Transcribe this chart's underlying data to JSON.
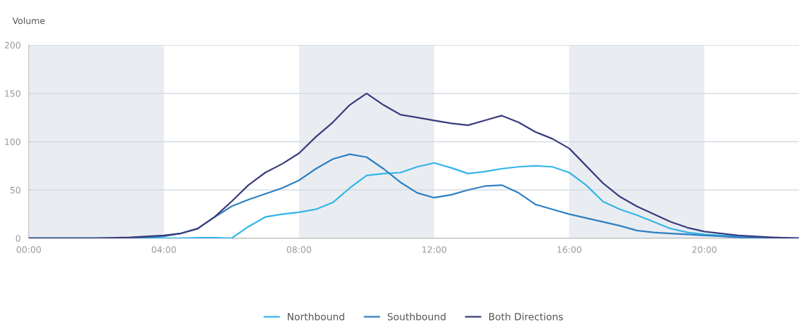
{
  "chart_data": {
    "type": "line",
    "ylabel": "Volume",
    "x": [
      0,
      2,
      3,
      4,
      4.5,
      5,
      5.5,
      6,
      6.5,
      7,
      7.5,
      8,
      8.5,
      9,
      9.5,
      10,
      10.5,
      11,
      11.5,
      12,
      12.5,
      13,
      13.5,
      14,
      14.5,
      15,
      15.5,
      16,
      16.5,
      17,
      17.5,
      18,
      18.5,
      19,
      19.5,
      20,
      21,
      22,
      22.8
    ],
    "series": [
      {
        "name": "Northbound",
        "color": "#33b5e8",
        "values": [
          0,
          0,
          0,
          0,
          0,
          0.5,
          0.5,
          0,
          12,
          22,
          25,
          27,
          30,
          37,
          52,
          65,
          67,
          68,
          74,
          78,
          73,
          67,
          69,
          72,
          74,
          75,
          74,
          68,
          55,
          38,
          30,
          24,
          17,
          10,
          6,
          4,
          2,
          0.5,
          0
        ]
      },
      {
        "name": "Southbound",
        "color": "#2f7fc1",
        "values": [
          0,
          0,
          0,
          2,
          5,
          10,
          22,
          33,
          40,
          46,
          52,
          60,
          72,
          82,
          87,
          84,
          72,
          58,
          47,
          42,
          45,
          50,
          54,
          55,
          47,
          35,
          30,
          25,
          21,
          17,
          13,
          8,
          6,
          5,
          4,
          3,
          1,
          0,
          0
        ]
      },
      {
        "name": "Both Directions",
        "color": "#3a3b7c",
        "values": [
          0,
          0,
          1,
          3,
          5,
          10,
          22,
          38,
          55,
          68,
          77,
          88,
          105,
          120,
          138,
          150,
          138,
          128,
          125,
          122,
          119,
          117,
          122,
          127,
          120,
          110,
          103,
          93,
          75,
          57,
          43,
          33,
          25,
          17,
          11,
          7,
          3,
          1,
          0
        ]
      }
    ],
    "xlim": [
      0,
      22.8
    ],
    "xticks": [
      {
        "value": 0,
        "label": "00:00"
      },
      {
        "value": 4,
        "label": "04:00"
      },
      {
        "value": 8,
        "label": "08:00"
      },
      {
        "value": 12,
        "label": "12:00"
      },
      {
        "value": 16,
        "label": "16:00"
      },
      {
        "value": 20,
        "label": "20:00"
      }
    ],
    "ylim": [
      0,
      200
    ],
    "yticks": [
      0,
      50,
      100,
      150,
      200
    ],
    "bands": [
      {
        "axis": "x",
        "from": 0,
        "to": 4,
        "color": "#e9edf2"
      },
      {
        "axis": "x",
        "from": 8,
        "to": 12,
        "color": "#e9edf2"
      },
      {
        "axis": "x",
        "from": 16,
        "to": 20,
        "color": "#e9edf2"
      }
    ],
    "grid": "y",
    "legend": "bottom",
    "marker": "none",
    "line_style": "solid"
  }
}
